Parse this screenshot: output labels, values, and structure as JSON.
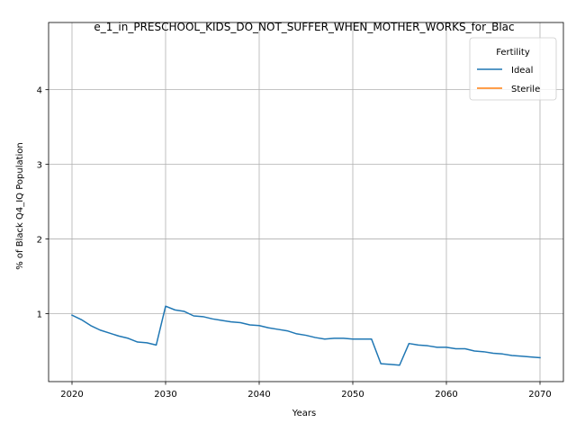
{
  "chart_data": {
    "type": "line",
    "title": "e_1_in_PRESCHOOL_KIDS_DO_NOT_SUFFER_WHEN_MOTHER_WORKS_for_Blac",
    "xlabel": "Years",
    "ylabel": "% of Black Q4_IQ Population",
    "xlim": [
      2017.5,
      2072.5
    ],
    "ylim": [
      0.09,
      4.9
    ],
    "xticks": [
      2020,
      2030,
      2040,
      2050,
      2060,
      2070
    ],
    "yticks": [
      1,
      2,
      3,
      4
    ],
    "grid": true,
    "legend": {
      "title": "Fertility",
      "position": "top-right"
    },
    "series": [
      {
        "name": "Ideal",
        "color": "#1f77b4",
        "x": [
          2020,
          2021,
          2022,
          2023,
          2024,
          2025,
          2026,
          2027,
          2028,
          2029,
          2030,
          2031,
          2032,
          2033,
          2034,
          2035,
          2036,
          2037,
          2038,
          2039,
          2040,
          2041,
          2042,
          2043,
          2044,
          2045,
          2046,
          2047,
          2048,
          2049,
          2050,
          2051,
          2052,
          2053,
          2054,
          2055,
          2056,
          2057,
          2058,
          2059,
          2060,
          2061,
          2062,
          2063,
          2064,
          2065,
          2066,
          2067,
          2068,
          2069,
          2070
        ],
        "values": [
          0.98,
          0.92,
          0.84,
          0.78,
          0.74,
          0.7,
          0.67,
          0.62,
          0.61,
          0.58,
          1.1,
          1.05,
          1.03,
          0.97,
          0.96,
          0.93,
          0.91,
          0.89,
          0.88,
          0.85,
          0.84,
          0.81,
          0.79,
          0.77,
          0.73,
          0.71,
          0.68,
          0.66,
          0.67,
          0.67,
          0.66,
          0.66,
          0.66,
          0.33,
          0.32,
          0.31,
          0.6,
          0.58,
          0.57,
          0.55,
          0.55,
          0.53,
          0.53,
          0.5,
          0.49,
          0.47,
          0.46,
          0.44,
          0.43,
          0.42,
          0.41
        ]
      },
      {
        "name": "Sterile",
        "color": "#ff7f0e",
        "x": [],
        "values": []
      }
    ]
  }
}
